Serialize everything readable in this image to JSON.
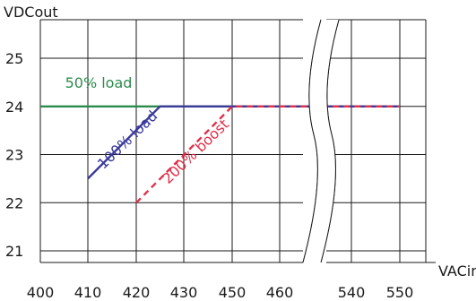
{
  "chart_data": {
    "type": "line",
    "ylabel": "VDCout",
    "xlabel": "VACin",
    "xticks": [
      "400",
      "410",
      "420",
      "430",
      "450",
      "460",
      "540",
      "550"
    ],
    "yticks": [
      "21",
      "22",
      "23",
      "24",
      "25"
    ],
    "ylim": [
      20,
      25.8
    ],
    "axis_break": "between 460 and 540",
    "series": [
      {
        "name": "50% load",
        "color": "#2e8b4e",
        "style": "solid",
        "points": [
          [
            400,
            24
          ],
          [
            460,
            24
          ],
          [
            550,
            24
          ]
        ]
      },
      {
        "name": "100% load",
        "color": "#3a3a9a",
        "style": "solid",
        "points": [
          [
            410,
            22.5
          ],
          [
            425,
            24
          ],
          [
            460,
            24
          ],
          [
            550,
            24
          ]
        ]
      },
      {
        "name": "200% boost",
        "color": "#e0304a",
        "style": "dashed",
        "points": [
          [
            420,
            22
          ],
          [
            450,
            24
          ],
          [
            460,
            24
          ],
          [
            550,
            24
          ]
        ]
      }
    ]
  }
}
